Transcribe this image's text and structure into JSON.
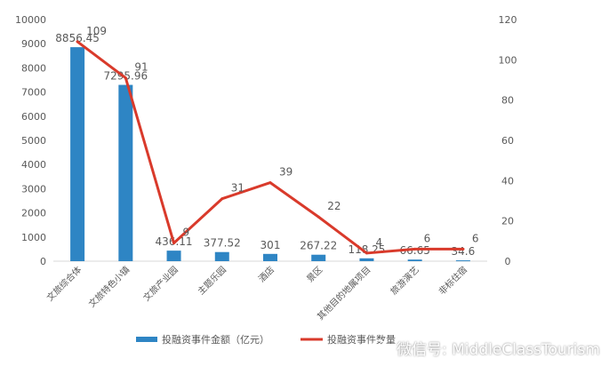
{
  "chart_data": {
    "type": "bar",
    "categories": [
      "文旅综合体",
      "文旅特色小镇",
      "文旅产业园",
      "主题乐园",
      "酒店",
      "景区",
      "其他目的地属项目",
      "旅游演艺",
      "非标住宿"
    ],
    "series": [
      {
        "name": "投融资事件金额（亿元）",
        "type": "bar",
        "axis": "left",
        "values": [
          8856.45,
          7295.96,
          436.11,
          377.52,
          301,
          267.22,
          118.25,
          66.65,
          34.6
        ],
        "labels": [
          "8856.45",
          "7295.96",
          "436.11",
          "377.52",
          "301",
          "267.22",
          "118.25",
          "66.65",
          "34.6"
        ]
      },
      {
        "name": "投融资事件数量",
        "type": "line",
        "axis": "right",
        "values": [
          109,
          91,
          9,
          31,
          39,
          22,
          4,
          6,
          6
        ],
        "labels": [
          "109",
          "91",
          "9",
          "31",
          "39",
          "22",
          "4",
          "6",
          "6"
        ]
      }
    ],
    "y_left": {
      "min": 0,
      "max": 10000,
      "ticks": [
        "0",
        "1000",
        "2000",
        "3000",
        "4000",
        "5000",
        "6000",
        "7000",
        "8000",
        "9000",
        "10000"
      ]
    },
    "y_right": {
      "min": 0,
      "max": 120,
      "ticks": [
        "0",
        "20",
        "40",
        "60",
        "80",
        "100",
        "120"
      ]
    },
    "legend": {
      "position": "bottom",
      "items": [
        "投融资事件金额（亿元）",
        "投融资事件数量"
      ]
    },
    "colors": {
      "bar": "#2e85c4",
      "line": "#d93a2b",
      "text": "#595959",
      "axis": "#d9d9d9"
    }
  },
  "watermark": {
    "text": "微信号: MiddleClassTourism",
    "icon": "wechat-icon"
  }
}
